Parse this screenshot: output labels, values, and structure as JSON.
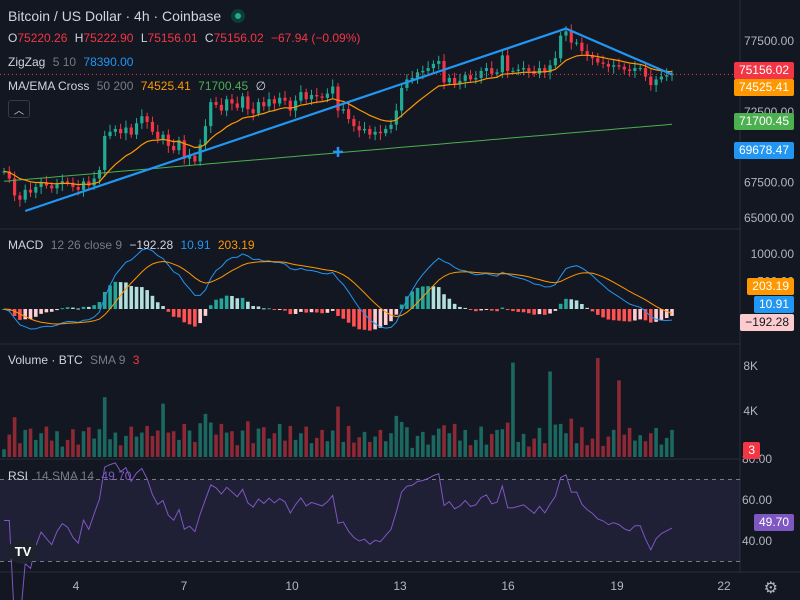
{
  "header": {
    "title": "Bitcoin / US Dollar · 4h · Coinbase",
    "ohlc": {
      "o_label": "O",
      "o": "75220.26",
      "h_label": "H",
      "h": "75222.90",
      "l_label": "L",
      "l": "75156.01",
      "c_label": "C",
      "c": "75156.02",
      "change": "−67.94 (−0.09%)"
    }
  },
  "indicators": {
    "zigzag": {
      "name": "ZigZag",
      "params": "5 10",
      "value": "78390.00"
    },
    "ma": {
      "name": "MA/EMA Cross",
      "params": "50 200",
      "value1": "74525.41",
      "value2": "71700.45",
      "extra": "∅"
    },
    "macd": {
      "name": "MACD",
      "params": "12 26 close 9",
      "hist": "−192.28",
      "macd": "10.91",
      "signal": "203.19"
    },
    "volume": {
      "name": "Volume · BTC",
      "params": "SMA 9",
      "value": "3"
    },
    "rsi": {
      "name": "RSI",
      "params": "14 SMA 14",
      "value": "49.70"
    }
  },
  "price_axis": [
    "77500.00",
    "72500.00",
    "70000.00",
    "67500.00",
    "65000.00"
  ],
  "price_badges": {
    "last": "75156.02",
    "ema50": "74525.41",
    "ema200": "71700.45",
    "cross": "69678.47"
  },
  "macd_axis": [
    "1000.00",
    "500.00"
  ],
  "macd_badges": {
    "signal": "203.19",
    "macd": "10.91",
    "hist": "−192.28"
  },
  "vol_axis": [
    "8K",
    "4K"
  ],
  "vol_badge": "3",
  "rsi_axis": [
    "80.00",
    "60.00",
    "40.00"
  ],
  "rsi_badge": "49.70",
  "time_axis": [
    "4",
    "7",
    "10",
    "13",
    "16",
    "19",
    "22"
  ],
  "icons": {
    "logo": "TV",
    "settings": "gear-icon",
    "collapse": "chevron-up-icon"
  },
  "colors": {
    "up": "#22ab94",
    "down": "#f23645",
    "zigzag": "#2196f3",
    "ema50": "#ff9800",
    "ema200": "#4caf50",
    "macd": "#2196f3",
    "signal": "#ff9800",
    "rsi": "#7e57c2",
    "bg": "#131722"
  },
  "chart_data": {
    "type": "candlestick",
    "timeframe": "4h",
    "price_range": [
      64300,
      79000
    ],
    "closes": [
      68300,
      67800,
      66600,
      66300,
      67000,
      66800,
      67200,
      67500,
      67300,
      67100,
      67400,
      67600,
      67500,
      67200,
      67000,
      67600,
      67300,
      67800,
      68400,
      70800,
      71100,
      71300,
      71000,
      71400,
      70900,
      71700,
      72200,
      71800,
      71100,
      70600,
      70900,
      70100,
      69800,
      70500,
      69200,
      69400,
      69000,
      70200,
      71500,
      73200,
      73000,
      72600,
      73400,
      73100,
      72800,
      73600,
      72700,
      72400,
      73200,
      72900,
      73400,
      73100,
      73500,
      73300,
      72600,
      73300,
      73900,
      73400,
      73700,
      73600,
      73500,
      73800,
      74300,
      72600,
      72700,
      72000,
      71500,
      71200,
      71300,
      70900,
      71100,
      71000,
      71300,
      71600,
      72600,
      74200,
      74800,
      74900,
      75300,
      75400,
      75600,
      75900,
      76100,
      74600,
      74900,
      74500,
      74700,
      75100,
      74800,
      74900,
      75400,
      75600,
      75200,
      75300,
      76500,
      75400,
      75400,
      75500,
      75600,
      75400,
      75200,
      75600,
      75300,
      75800,
      76300,
      77900,
      78200,
      77400,
      77400,
      76800,
      76500,
      76300,
      76000,
      75900,
      75700,
      75800,
      75700,
      75500,
      75400,
      75600,
      75600,
      75000,
      74400,
      74800,
      75000,
      75100,
      75200
    ]
  }
}
